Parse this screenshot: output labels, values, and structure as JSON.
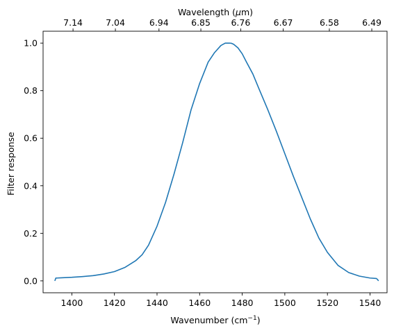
{
  "chart_data": {
    "type": "line",
    "xlabel": "Wavenumber (cm",
    "xlabel_sup": "−1",
    "xlabel_close": ")",
    "ylabel": "Filter response",
    "top_xlabel": "Wavelength (",
    "top_xlabel_mu": "μ",
    "top_xlabel_end": "m)",
    "xlim": [
      1386.5,
      1548
    ],
    "ylim": [
      -0.05,
      1.05
    ],
    "x_ticks": [
      1400,
      1420,
      1440,
      1460,
      1480,
      1500,
      1520,
      1540
    ],
    "x_tick_labels": [
      "1400",
      "1420",
      "1440",
      "1460",
      "1480",
      "1500",
      "1520",
      "1540"
    ],
    "y_ticks": [
      0.0,
      0.2,
      0.4,
      0.6,
      0.8,
      1.0
    ],
    "y_tick_labels": [
      "0.0",
      "0.2",
      "0.4",
      "0.6",
      "0.8",
      "1.0"
    ],
    "top_ticks_wavenumber": [
      1400.56,
      1420.45,
      1440.92,
      1460.58,
      1479.29,
      1499.25,
      1520.91,
      1540.83
    ],
    "top_tick_labels": [
      "7.14",
      "7.04",
      "6.94",
      "6.85",
      "6.76",
      "6.67",
      "6.58",
      "6.49"
    ],
    "series": [
      {
        "color": "#1f77b4",
        "x": [
          1392,
          1392.5,
          1393,
          1395,
          1400,
          1405,
          1410,
          1415,
          1420,
          1425,
          1430,
          1433,
          1436,
          1440,
          1444,
          1448,
          1452,
          1456,
          1460,
          1464,
          1467,
          1470,
          1472,
          1474,
          1475,
          1476,
          1478,
          1480,
          1482,
          1485,
          1488,
          1492,
          1496,
          1500,
          1504,
          1508,
          1512,
          1516,
          1520,
          1525,
          1530,
          1535,
          1540,
          1543,
          1543.5,
          1544
        ],
        "y": [
          0.0,
          0.012,
          0.012,
          0.013,
          0.015,
          0.018,
          0.022,
          0.029,
          0.039,
          0.057,
          0.085,
          0.11,
          0.15,
          0.23,
          0.33,
          0.45,
          0.58,
          0.72,
          0.83,
          0.92,
          0.96,
          0.99,
          1.0,
          1.0,
          0.999,
          0.995,
          0.98,
          0.955,
          0.92,
          0.87,
          0.805,
          0.72,
          0.63,
          0.535,
          0.44,
          0.35,
          0.26,
          0.18,
          0.12,
          0.065,
          0.035,
          0.02,
          0.012,
          0.01,
          0.006,
          0.0
        ]
      }
    ],
    "grid": false,
    "legend": "none"
  }
}
